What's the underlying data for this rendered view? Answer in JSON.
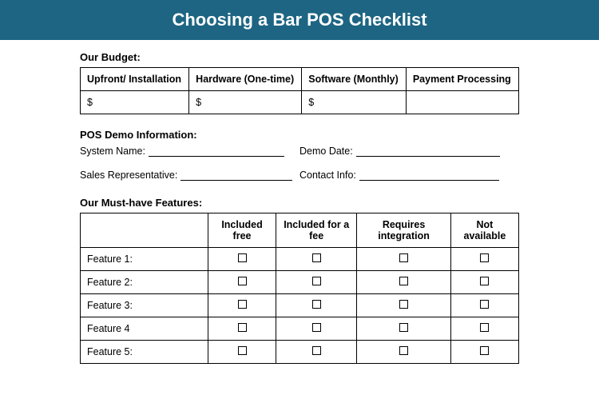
{
  "header": {
    "title": "Choosing a Bar POS Checklist",
    "bg_color": "#1d6583",
    "text_color": "#ffffff"
  },
  "budget": {
    "label": "Our Budget:",
    "columns": [
      "Upfront/ Installation",
      "Hardware (One-time)",
      "Software (Monthly)",
      "Payment Processing"
    ],
    "values": [
      "$",
      "$",
      "$",
      ""
    ]
  },
  "demo": {
    "label": "POS Demo Information:",
    "fields": {
      "system_name": "System Name:",
      "demo_date": "Demo Date:",
      "sales_rep": "Sales Representative:",
      "contact_info": "Contact Info:"
    }
  },
  "features": {
    "label": "Our Must-have Features:",
    "columns": [
      "",
      "Included free",
      "Included for a fee",
      "Requires integration",
      "Not available"
    ],
    "rows": [
      "Feature 1:",
      "Feature 2:",
      "Feature 3:",
      "Feature 4",
      "Feature 5:"
    ]
  },
  "layout": {
    "col_widths_features": [
      "160px",
      "auto",
      "auto",
      "auto",
      "auto"
    ]
  }
}
